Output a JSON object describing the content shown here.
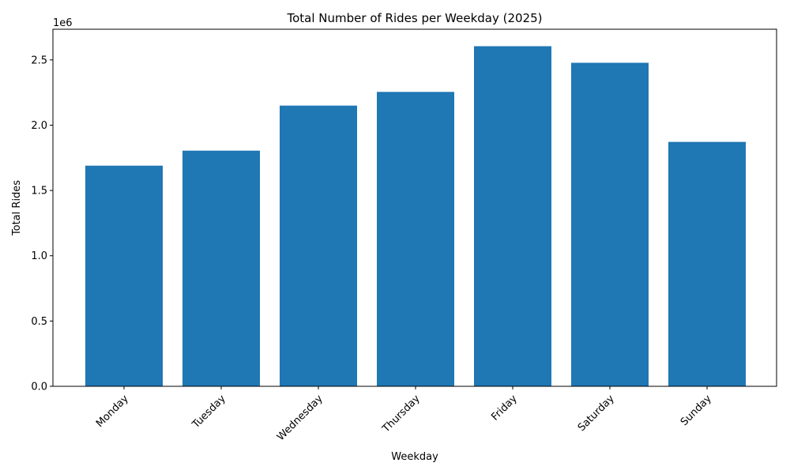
{
  "chart_data": {
    "type": "bar",
    "title": "Total Number of Rides per Weekday (2025)",
    "xlabel": "Weekday",
    "ylabel": "Total Rides",
    "y_offset_label": "1e6",
    "categories": [
      "Monday",
      "Tuesday",
      "Wednesday",
      "Thursday",
      "Friday",
      "Saturday",
      "Sunday"
    ],
    "values": [
      1690000,
      1805000,
      2150000,
      2255000,
      2605000,
      2478000,
      1872000
    ],
    "ylim": [
      0,
      2735000
    ],
    "yticks": [
      0,
      500000,
      1000000,
      1500000,
      2000000,
      2500000
    ],
    "ytick_labels": [
      "0.0",
      "0.5",
      "1.0",
      "1.5",
      "2.0",
      "2.5"
    ],
    "bar_color": "#1f77b4",
    "grid": false,
    "xtick_rotation": "45 degrees"
  }
}
